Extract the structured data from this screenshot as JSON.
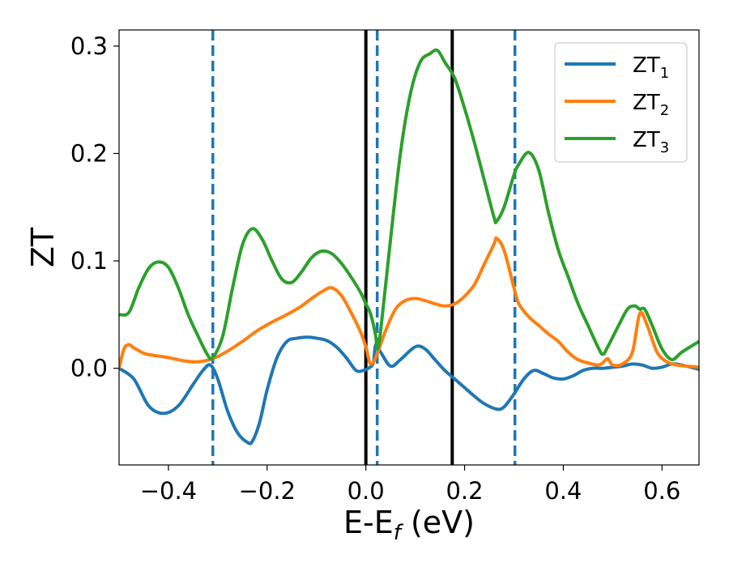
{
  "chart_data": {
    "type": "line",
    "xlabel": "E-E",
    "xlabel_sub": "f",
    "xlabel_unit": " (eV)",
    "ylabel": "ZT",
    "xlim": [
      -0.5,
      0.675
    ],
    "ylim": [
      -0.09,
      0.315
    ],
    "x_ticks": [
      -0.4,
      -0.2,
      0.0,
      0.2,
      0.4,
      0.6
    ],
    "x_tick_labels": [
      "−0.4",
      "−0.2",
      "0.0",
      "0.2",
      "0.4",
      "0.6"
    ],
    "y_ticks": [
      0.0,
      0.1,
      0.2,
      0.3
    ],
    "y_tick_labels": [
      "0.0",
      "0.1",
      "0.2",
      "0.3"
    ],
    "grid": false,
    "legend_position": "top-right",
    "vlines": [
      {
        "x": -0.31,
        "style": "dashed",
        "color": "#1f77b4"
      },
      {
        "x": 0.023,
        "style": "dashed",
        "color": "#1f77b4"
      },
      {
        "x": 0.302,
        "style": "dashed",
        "color": "#1f77b4"
      },
      {
        "x": 0.0,
        "style": "solid",
        "color": "#000000"
      },
      {
        "x": 0.175,
        "style": "solid",
        "color": "#000000"
      }
    ],
    "series": [
      {
        "name": "ZT",
        "sub": "1",
        "color": "#1f77b4",
        "x": [
          -0.5,
          -0.47,
          -0.44,
          -0.41,
          -0.38,
          -0.35,
          -0.33,
          -0.315,
          -0.3,
          -0.28,
          -0.26,
          -0.24,
          -0.23,
          -0.215,
          -0.2,
          -0.18,
          -0.16,
          -0.14,
          -0.12,
          -0.1,
          -0.08,
          -0.06,
          -0.04,
          -0.02,
          -0.005,
          0.005,
          0.015,
          0.02,
          0.03,
          0.05,
          0.07,
          0.1,
          0.12,
          0.14,
          0.16,
          0.18,
          0.2,
          0.22,
          0.24,
          0.265,
          0.28,
          0.3,
          0.32,
          0.34,
          0.36,
          0.38,
          0.4,
          0.42,
          0.44,
          0.46,
          0.48,
          0.5,
          0.52,
          0.54,
          0.56,
          0.58,
          0.6,
          0.62,
          0.64,
          0.675
        ],
        "y": [
          0.0,
          -0.01,
          -0.035,
          -0.042,
          -0.035,
          -0.015,
          -0.002,
          0.003,
          -0.01,
          -0.04,
          -0.06,
          -0.069,
          -0.068,
          -0.05,
          -0.02,
          0.01,
          0.025,
          0.028,
          0.029,
          0.028,
          0.026,
          0.02,
          0.01,
          -0.002,
          -0.002,
          0.0,
          0.005,
          0.022,
          0.015,
          0.002,
          0.008,
          0.02,
          0.018,
          0.008,
          -0.002,
          -0.01,
          -0.018,
          -0.026,
          -0.033,
          -0.038,
          -0.036,
          -0.024,
          -0.01,
          -0.002,
          -0.005,
          -0.009,
          -0.01,
          -0.007,
          -0.002,
          0.0,
          0.0,
          0.001,
          0.002,
          0.004,
          0.003,
          0.0,
          0.001,
          0.004,
          0.003,
          -0.001
        ]
      },
      {
        "name": "ZT",
        "sub": "2",
        "color": "#ff7f0e",
        "x": [
          -0.5,
          -0.49,
          -0.48,
          -0.47,
          -0.45,
          -0.43,
          -0.4,
          -0.37,
          -0.34,
          -0.31,
          -0.28,
          -0.25,
          -0.22,
          -0.19,
          -0.16,
          -0.13,
          -0.11,
          -0.09,
          -0.07,
          -0.05,
          -0.03,
          -0.01,
          0.0,
          0.005,
          0.01,
          0.02,
          0.04,
          0.06,
          0.08,
          0.1,
          0.12,
          0.14,
          0.16,
          0.18,
          0.2,
          0.22,
          0.24,
          0.26,
          0.265,
          0.28,
          0.3,
          0.31,
          0.33,
          0.35,
          0.37,
          0.39,
          0.41,
          0.43,
          0.45,
          0.47,
          0.48,
          0.49,
          0.5,
          0.52,
          0.54,
          0.555,
          0.57,
          0.59,
          0.61,
          0.63,
          0.65,
          0.675
        ],
        "y": [
          0.0,
          0.018,
          0.022,
          0.019,
          0.014,
          0.012,
          0.01,
          0.007,
          0.006,
          0.009,
          0.016,
          0.025,
          0.035,
          0.043,
          0.05,
          0.058,
          0.065,
          0.071,
          0.075,
          0.068,
          0.052,
          0.033,
          0.02,
          0.01,
          0.004,
          0.01,
          0.035,
          0.055,
          0.063,
          0.065,
          0.063,
          0.06,
          0.058,
          0.06,
          0.067,
          0.078,
          0.097,
          0.116,
          0.121,
          0.11,
          0.075,
          0.06,
          0.048,
          0.04,
          0.032,
          0.025,
          0.015,
          0.008,
          0.005,
          0.003,
          0.005,
          0.009,
          0.003,
          0.004,
          0.015,
          0.051,
          0.04,
          0.015,
          0.006,
          0.003,
          0.002,
          0.001
        ]
      },
      {
        "name": "ZT",
        "sub": "3",
        "color": "#2ca02c",
        "x": [
          -0.5,
          -0.48,
          -0.46,
          -0.44,
          -0.42,
          -0.4,
          -0.38,
          -0.36,
          -0.34,
          -0.32,
          -0.31,
          -0.29,
          -0.27,
          -0.25,
          -0.23,
          -0.21,
          -0.19,
          -0.17,
          -0.15,
          -0.13,
          -0.11,
          -0.09,
          -0.07,
          -0.05,
          -0.03,
          -0.01,
          0.0,
          0.01,
          0.02,
          0.023,
          0.03,
          0.05,
          0.07,
          0.09,
          0.11,
          0.13,
          0.145,
          0.16,
          0.18,
          0.2,
          0.22,
          0.24,
          0.26,
          0.265,
          0.28,
          0.3,
          0.31,
          0.33,
          0.35,
          0.37,
          0.39,
          0.41,
          0.43,
          0.45,
          0.47,
          0.48,
          0.49,
          0.51,
          0.53,
          0.545,
          0.555,
          0.565,
          0.58,
          0.6,
          0.62,
          0.64,
          0.675
        ],
        "y": [
          0.05,
          0.052,
          0.075,
          0.093,
          0.099,
          0.094,
          0.075,
          0.05,
          0.03,
          0.012,
          0.01,
          0.03,
          0.075,
          0.115,
          0.13,
          0.12,
          0.1,
          0.083,
          0.08,
          0.09,
          0.103,
          0.109,
          0.107,
          0.098,
          0.085,
          0.07,
          0.06,
          0.05,
          0.03,
          0.018,
          0.035,
          0.12,
          0.2,
          0.255,
          0.285,
          0.293,
          0.296,
          0.285,
          0.27,
          0.242,
          0.21,
          0.175,
          0.14,
          0.137,
          0.15,
          0.18,
          0.19,
          0.201,
          0.185,
          0.145,
          0.11,
          0.085,
          0.06,
          0.04,
          0.02,
          0.013,
          0.02,
          0.038,
          0.055,
          0.058,
          0.055,
          0.055,
          0.04,
          0.018,
          0.008,
          0.015,
          0.025
        ]
      }
    ]
  }
}
